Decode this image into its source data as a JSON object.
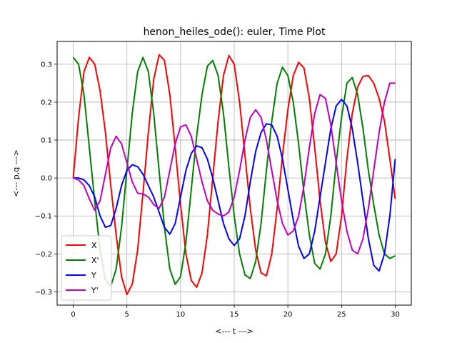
{
  "chart_data": {
    "type": "line",
    "title": "henon_heiles_ode(): euler, Time Plot",
    "xlabel": "<---  t  --->",
    "ylabel": "<---  p,q  --->",
    "xlim": [
      -1.5,
      31.5
    ],
    "ylim": [
      -0.335,
      0.36
    ],
    "xticks": [
      0,
      5,
      10,
      15,
      20,
      25,
      30
    ],
    "yticks": [
      -0.3,
      -0.2,
      -0.1,
      0.0,
      0.1,
      0.2,
      0.3
    ],
    "xtick_labels": [
      "0",
      "5",
      "10",
      "15",
      "20",
      "25",
      "30"
    ],
    "ytick_labels": [
      "−0.3",
      "−0.2",
      "−0.1",
      "0.0",
      "0.1",
      "0.2",
      "0.3"
    ],
    "grid": true,
    "legend": "lower-left",
    "series": [
      {
        "name": "X",
        "color": "#ff0000",
        "points": [
          [
            0,
            0
          ],
          [
            0.5,
            0.16
          ],
          [
            1.0,
            0.28
          ],
          [
            1.5,
            0.318
          ],
          [
            2.0,
            0.3
          ],
          [
            2.5,
            0.23
          ],
          [
            3.0,
            0.12
          ],
          [
            3.5,
            -0.02
          ],
          [
            4.0,
            -0.15
          ],
          [
            4.5,
            -0.26
          ],
          [
            5.0,
            -0.307
          ],
          [
            5.5,
            -0.28
          ],
          [
            6.0,
            -0.19
          ],
          [
            6.5,
            -0.04
          ],
          [
            7.0,
            0.12
          ],
          [
            7.5,
            0.26
          ],
          [
            8.0,
            0.325
          ],
          [
            8.5,
            0.31
          ],
          [
            9.0,
            0.22
          ],
          [
            9.5,
            0.08
          ],
          [
            10.0,
            -0.07
          ],
          [
            10.5,
            -0.2
          ],
          [
            11.0,
            -0.27
          ],
          [
            11.5,
            -0.288
          ],
          [
            12.0,
            -0.25
          ],
          [
            12.5,
            -0.15
          ],
          [
            13.0,
            0.0
          ],
          [
            13.5,
            0.15
          ],
          [
            14.0,
            0.27
          ],
          [
            14.5,
            0.323
          ],
          [
            15.0,
            0.3
          ],
          [
            15.5,
            0.2
          ],
          [
            16.0,
            0.06
          ],
          [
            16.5,
            -0.08
          ],
          [
            17.0,
            -0.19
          ],
          [
            17.5,
            -0.25
          ],
          [
            18.0,
            -0.258
          ],
          [
            18.5,
            -0.2
          ],
          [
            19.0,
            -0.08
          ],
          [
            19.5,
            0.06
          ],
          [
            20.0,
            0.18
          ],
          [
            20.5,
            0.27
          ],
          [
            21.0,
            0.305
          ],
          [
            21.5,
            0.29
          ],
          [
            22.0,
            0.21
          ],
          [
            22.5,
            0.08
          ],
          [
            23.0,
            -0.06
          ],
          [
            23.5,
            -0.17
          ],
          [
            24.0,
            -0.22
          ],
          [
            24.5,
            -0.2
          ],
          [
            25.0,
            -0.1
          ],
          [
            25.5,
            0.05
          ],
          [
            26.0,
            0.17
          ],
          [
            26.5,
            0.24
          ],
          [
            27.0,
            0.268
          ],
          [
            27.5,
            0.27
          ],
          [
            28.0,
            0.25
          ],
          [
            28.5,
            0.21
          ],
          [
            29.0,
            0.15
          ],
          [
            29.5,
            0.05
          ],
          [
            30.0,
            -0.055
          ]
        ]
      },
      {
        "name": "X'",
        "color": "#008000",
        "points": [
          [
            0,
            0.318
          ],
          [
            0.5,
            0.3
          ],
          [
            1.0,
            0.22
          ],
          [
            1.5,
            0.08
          ],
          [
            2.0,
            -0.06
          ],
          [
            2.5,
            -0.19
          ],
          [
            3.0,
            -0.27
          ],
          [
            3.5,
            -0.285
          ],
          [
            4.0,
            -0.24
          ],
          [
            4.5,
            -0.13
          ],
          [
            5.0,
            0.02
          ],
          [
            5.5,
            0.17
          ],
          [
            6.0,
            0.28
          ],
          [
            6.5,
            0.318
          ],
          [
            7.0,
            0.28
          ],
          [
            7.5,
            0.17
          ],
          [
            8.0,
            0.02
          ],
          [
            8.5,
            -0.13
          ],
          [
            9.0,
            -0.24
          ],
          [
            9.5,
            -0.28
          ],
          [
            10.0,
            -0.26
          ],
          [
            10.5,
            -0.17
          ],
          [
            11.0,
            -0.03
          ],
          [
            11.5,
            0.11
          ],
          [
            12.0,
            0.22
          ],
          [
            12.5,
            0.295
          ],
          [
            13.0,
            0.31
          ],
          [
            13.5,
            0.27
          ],
          [
            14.0,
            0.17
          ],
          [
            14.5,
            0.03
          ],
          [
            15.0,
            -0.1
          ],
          [
            15.5,
            -0.2
          ],
          [
            16.0,
            -0.255
          ],
          [
            16.5,
            -0.265
          ],
          [
            17.0,
            -0.22
          ],
          [
            17.5,
            -0.12
          ],
          [
            18.0,
            0.02
          ],
          [
            18.5,
            0.15
          ],
          [
            19.0,
            0.25
          ],
          [
            19.5,
            0.292
          ],
          [
            20.0,
            0.27
          ],
          [
            20.5,
            0.2
          ],
          [
            21.0,
            0.09
          ],
          [
            21.5,
            -0.04
          ],
          [
            22.0,
            -0.15
          ],
          [
            22.5,
            -0.225
          ],
          [
            23.0,
            -0.24
          ],
          [
            23.5,
            -0.2
          ],
          [
            24.0,
            -0.1
          ],
          [
            24.5,
            0.04
          ],
          [
            25.0,
            0.16
          ],
          [
            25.5,
            0.25
          ],
          [
            26.0,
            0.265
          ],
          [
            26.5,
            0.22
          ],
          [
            27.0,
            0.13
          ],
          [
            27.5,
            0.02
          ],
          [
            28.0,
            -0.07
          ],
          [
            28.5,
            -0.15
          ],
          [
            29.0,
            -0.2
          ],
          [
            29.5,
            -0.212
          ],
          [
            30.0,
            -0.205
          ]
        ]
      },
      {
        "name": "Y",
        "color": "#0000ff",
        "points": [
          [
            0,
            0
          ],
          [
            0.5,
            0.0
          ],
          [
            1.0,
            -0.005
          ],
          [
            1.5,
            -0.02
          ],
          [
            2.0,
            -0.05
          ],
          [
            2.5,
            -0.1
          ],
          [
            3.0,
            -0.13
          ],
          [
            3.5,
            -0.125
          ],
          [
            4.0,
            -0.08
          ],
          [
            4.5,
            -0.02
          ],
          [
            5.0,
            0.02
          ],
          [
            5.5,
            0.035
          ],
          [
            6.0,
            0.03
          ],
          [
            6.5,
            0.01
          ],
          [
            7.0,
            -0.02
          ],
          [
            7.5,
            -0.05
          ],
          [
            8.0,
            -0.09
          ],
          [
            8.5,
            -0.13
          ],
          [
            9.0,
            -0.148
          ],
          [
            9.5,
            -0.12
          ],
          [
            10.0,
            -0.05
          ],
          [
            10.5,
            0.02
          ],
          [
            11.0,
            0.065
          ],
          [
            11.5,
            0.085
          ],
          [
            12.0,
            0.08
          ],
          [
            12.5,
            0.05
          ],
          [
            13.0,
            0.0
          ],
          [
            13.5,
            -0.06
          ],
          [
            14.0,
            -0.12
          ],
          [
            14.5,
            -0.16
          ],
          [
            15.0,
            -0.178
          ],
          [
            15.5,
            -0.16
          ],
          [
            16.0,
            -0.1
          ],
          [
            16.5,
            -0.01
          ],
          [
            17.0,
            0.07
          ],
          [
            17.5,
            0.12
          ],
          [
            18.0,
            0.143
          ],
          [
            18.5,
            0.14
          ],
          [
            19.0,
            0.11
          ],
          [
            19.5,
            0.05
          ],
          [
            20.0,
            -0.03
          ],
          [
            20.5,
            -0.11
          ],
          [
            21.0,
            -0.18
          ],
          [
            21.5,
            -0.212
          ],
          [
            22.0,
            -0.2
          ],
          [
            22.5,
            -0.14
          ],
          [
            23.0,
            -0.05
          ],
          [
            23.5,
            0.04
          ],
          [
            24.0,
            0.13
          ],
          [
            24.5,
            0.19
          ],
          [
            25.0,
            0.207
          ],
          [
            25.5,
            0.19
          ],
          [
            26.0,
            0.13
          ],
          [
            26.5,
            0.04
          ],
          [
            27.0,
            -0.06
          ],
          [
            27.5,
            -0.16
          ],
          [
            28.0,
            -0.23
          ],
          [
            28.5,
            -0.245
          ],
          [
            29.0,
            -0.2
          ],
          [
            29.5,
            -0.1
          ],
          [
            30.0,
            0.05
          ]
        ]
      },
      {
        "name": "Y'",
        "color": "#bf00bf",
        "points": [
          [
            0,
            0
          ],
          [
            0.5,
            -0.005
          ],
          [
            1.0,
            -0.02
          ],
          [
            1.5,
            -0.055
          ],
          [
            2.0,
            -0.085
          ],
          [
            2.5,
            -0.06
          ],
          [
            3.0,
            0.01
          ],
          [
            3.5,
            0.08
          ],
          [
            4.0,
            0.11
          ],
          [
            4.5,
            0.09
          ],
          [
            5.0,
            0.04
          ],
          [
            5.5,
            -0.01
          ],
          [
            6.0,
            -0.04
          ],
          [
            6.5,
            -0.042
          ],
          [
            7.0,
            -0.05
          ],
          [
            7.5,
            -0.07
          ],
          [
            8.0,
            -0.08
          ],
          [
            8.5,
            -0.05
          ],
          [
            9.0,
            0.02
          ],
          [
            9.5,
            0.09
          ],
          [
            10.0,
            0.135
          ],
          [
            10.5,
            0.14
          ],
          [
            11.0,
            0.11
          ],
          [
            11.5,
            0.05
          ],
          [
            12.0,
            -0.01
          ],
          [
            12.5,
            -0.06
          ],
          [
            13.0,
            -0.085
          ],
          [
            13.5,
            -0.095
          ],
          [
            14.0,
            -0.1
          ],
          [
            14.5,
            -0.09
          ],
          [
            15.0,
            -0.05
          ],
          [
            15.5,
            0.02
          ],
          [
            16.0,
            0.1
          ],
          [
            16.5,
            0.16
          ],
          [
            17.0,
            0.18
          ],
          [
            17.5,
            0.16
          ],
          [
            18.0,
            0.1
          ],
          [
            18.5,
            0.02
          ],
          [
            19.0,
            -0.06
          ],
          [
            19.5,
            -0.12
          ],
          [
            20.0,
            -0.15
          ],
          [
            20.5,
            -0.14
          ],
          [
            21.0,
            -0.1
          ],
          [
            21.5,
            -0.02
          ],
          [
            22.0,
            0.08
          ],
          [
            22.5,
            0.17
          ],
          [
            23.0,
            0.22
          ],
          [
            23.5,
            0.21
          ],
          [
            24.0,
            0.14
          ],
          [
            24.5,
            0.04
          ],
          [
            25.0,
            -0.06
          ],
          [
            25.5,
            -0.14
          ],
          [
            26.0,
            -0.19
          ],
          [
            26.5,
            -0.2
          ],
          [
            27.0,
            -0.16
          ],
          [
            27.5,
            -0.08
          ],
          [
            28.0,
            0.02
          ],
          [
            28.5,
            0.12
          ],
          [
            29.0,
            0.2
          ],
          [
            29.5,
            0.25
          ],
          [
            30.0,
            0.25
          ]
        ]
      }
    ]
  }
}
